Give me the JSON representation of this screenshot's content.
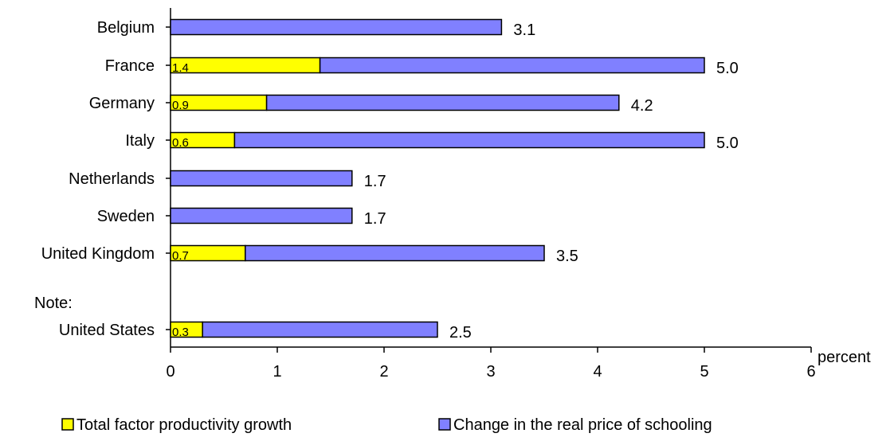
{
  "chart_data": {
    "type": "bar",
    "orientation": "horizontal",
    "stacked": true,
    "categories": [
      "Belgium",
      "France",
      "Germany",
      "Italy",
      "Netherlands",
      "Sweden",
      "United Kingdom",
      "United States"
    ],
    "group_note": {
      "label": "Note:",
      "before_category": "United States"
    },
    "series": [
      {
        "name": "Total factor productivity growth",
        "values": [
          null,
          1.4,
          0.9,
          0.6,
          null,
          null,
          0.7,
          0.3
        ],
        "color": "#ffff00"
      },
      {
        "name": "Change in the real price of schooling",
        "values": [
          3.1,
          3.6,
          3.3,
          4.4,
          1.7,
          1.7,
          2.8,
          2.2
        ],
        "color": "#8080ff"
      }
    ],
    "totals": [
      3.1,
      5.0,
      4.2,
      5.0,
      1.7,
      1.7,
      3.5,
      2.5
    ],
    "total_labels": [
      "3.1",
      "5.0",
      "4.2",
      "5.0",
      "1.7",
      "1.7",
      "3.5",
      "2.5"
    ],
    "inner_labels": [
      "",
      "1.4",
      "0.9",
      "0.6",
      "",
      "",
      "0.7",
      "0.3"
    ],
    "xlabel": "percent",
    "xlim": [
      0,
      6
    ],
    "xticks": [
      "0",
      "1",
      "2",
      "3",
      "4",
      "5",
      "6"
    ],
    "grid": false,
    "legend_position": "bottom"
  }
}
